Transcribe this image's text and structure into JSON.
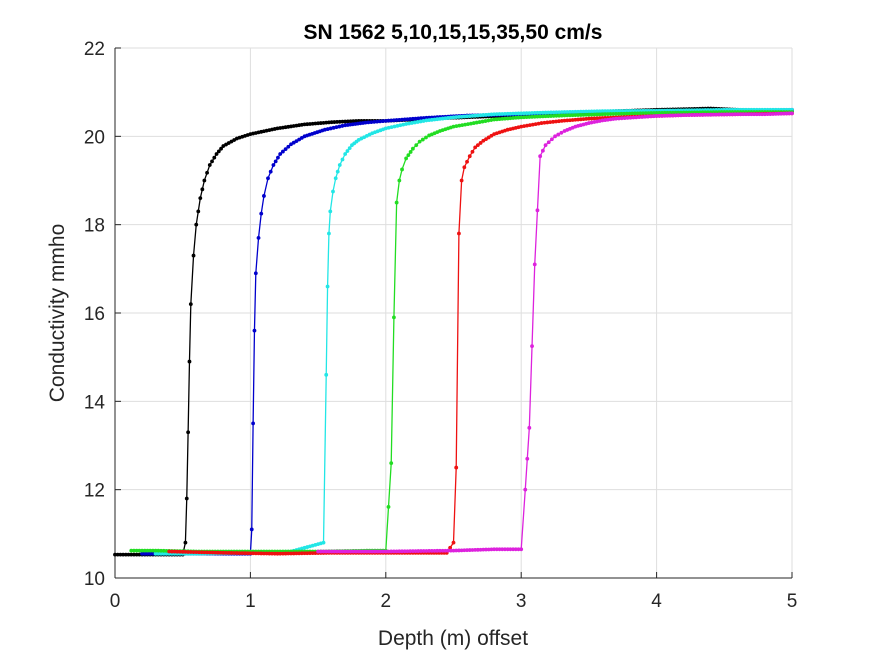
{
  "chart_data": {
    "type": "line",
    "title": "SN 1562 5,10,15,15,35,50 cm/s",
    "xlabel": "Depth (m) offset",
    "ylabel": "Conductivity  mmho",
    "xlim": [
      0,
      5
    ],
    "ylim": [
      10,
      22
    ],
    "xticks": [
      "0",
      "1",
      "2",
      "3",
      "4",
      "5"
    ],
    "yticks": [
      "10",
      "12",
      "14",
      "16",
      "18",
      "20",
      "22"
    ],
    "grid": true,
    "series": [
      {
        "color": "#000000",
        "x": [
          0.0,
          0.2,
          0.4,
          0.5,
          0.52,
          0.53,
          0.54,
          0.55,
          0.56,
          0.58,
          0.6,
          0.63,
          0.66,
          0.7,
          0.75,
          0.8,
          0.9,
          1.0,
          1.2,
          1.4,
          1.6,
          1.8,
          2.0,
          2.5,
          3.0,
          3.5,
          4.0,
          4.4,
          4.6,
          5.0
        ],
        "y": [
          10.53,
          10.53,
          10.53,
          10.53,
          10.8,
          11.8,
          13.3,
          14.9,
          16.2,
          17.3,
          18.0,
          18.6,
          19.0,
          19.35,
          19.6,
          19.78,
          19.95,
          20.05,
          20.18,
          20.27,
          20.32,
          20.35,
          20.35,
          20.42,
          20.48,
          20.55,
          20.6,
          20.63,
          20.6,
          20.58
        ]
      },
      {
        "color": "#0000cc",
        "x": [
          0.2,
          0.5,
          0.8,
          1.0,
          1.01,
          1.02,
          1.03,
          1.04,
          1.06,
          1.08,
          1.1,
          1.13,
          1.17,
          1.22,
          1.3,
          1.4,
          1.55,
          1.7,
          1.85,
          2.0,
          2.3,
          2.6,
          3.0,
          3.5,
          4.0,
          4.5,
          5.0
        ],
        "y": [
          10.55,
          10.55,
          10.55,
          10.55,
          11.1,
          13.5,
          15.6,
          16.9,
          17.7,
          18.25,
          18.65,
          19.05,
          19.35,
          19.6,
          19.82,
          20.0,
          20.15,
          20.25,
          20.31,
          20.35,
          20.42,
          20.47,
          20.5,
          20.53,
          20.56,
          20.58,
          20.6
        ]
      },
      {
        "color": "#22e6e6",
        "x": [
          0.3,
          0.6,
          1.0,
          1.3,
          1.54,
          1.56,
          1.57,
          1.58,
          1.59,
          1.61,
          1.63,
          1.66,
          1.7,
          1.75,
          1.8,
          1.9,
          2.0,
          2.15,
          2.3,
          2.5,
          2.8,
          3.2,
          3.6,
          4.0,
          4.5,
          5.0
        ],
        "y": [
          10.55,
          10.55,
          10.57,
          10.6,
          10.8,
          14.6,
          16.6,
          17.8,
          18.3,
          18.75,
          19.05,
          19.35,
          19.6,
          19.8,
          19.92,
          20.07,
          20.18,
          20.28,
          20.36,
          20.43,
          20.5,
          20.54,
          20.57,
          20.58,
          20.6,
          20.6
        ]
      },
      {
        "color": "#22dd22",
        "x": [
          0.12,
          0.3,
          0.6,
          1.0,
          1.5,
          1.9,
          2.0,
          2.04,
          2.06,
          2.08,
          2.1,
          2.12,
          2.15,
          2.2,
          2.25,
          2.32,
          2.4,
          2.5,
          2.65,
          2.8,
          3.0,
          3.3,
          3.6,
          4.0,
          4.5,
          5.0
        ],
        "y": [
          10.62,
          10.62,
          10.6,
          10.6,
          10.6,
          10.62,
          10.62,
          12.6,
          15.9,
          18.5,
          19.0,
          19.25,
          19.5,
          19.72,
          19.88,
          20.02,
          20.12,
          20.22,
          20.3,
          20.38,
          20.43,
          20.47,
          20.5,
          20.53,
          20.55,
          20.55
        ]
      },
      {
        "color": "#ee1111",
        "x": [
          0.4,
          0.8,
          1.2,
          1.6,
          2.0,
          2.3,
          2.45,
          2.5,
          2.52,
          2.54,
          2.56,
          2.58,
          2.62,
          2.66,
          2.72,
          2.8,
          2.9,
          3.0,
          3.15,
          3.3,
          3.5,
          3.8,
          4.2,
          4.6,
          5.0
        ],
        "y": [
          10.6,
          10.57,
          10.55,
          10.57,
          10.57,
          10.57,
          10.57,
          10.8,
          12.5,
          17.8,
          19.0,
          19.3,
          19.55,
          19.75,
          19.9,
          20.05,
          20.15,
          20.22,
          20.3,
          20.35,
          20.4,
          20.44,
          20.48,
          20.5,
          20.52
        ]
      },
      {
        "color": "#dd22dd",
        "x": [
          1.5,
          2.0,
          2.5,
          2.8,
          3.0,
          3.03,
          3.06,
          3.1,
          3.14,
          3.18,
          3.25,
          3.32,
          3.4,
          3.5,
          3.6,
          3.7,
          3.85,
          4.0,
          4.2,
          4.4,
          4.6,
          4.8,
          5.0
        ],
        "y": [
          10.6,
          10.6,
          10.62,
          10.65,
          10.65,
          12.0,
          13.4,
          17.1,
          19.55,
          19.8,
          20.0,
          20.12,
          20.22,
          20.3,
          20.36,
          20.4,
          20.43,
          20.46,
          20.48,
          20.49,
          20.5,
          20.5,
          20.52
        ]
      }
    ]
  }
}
